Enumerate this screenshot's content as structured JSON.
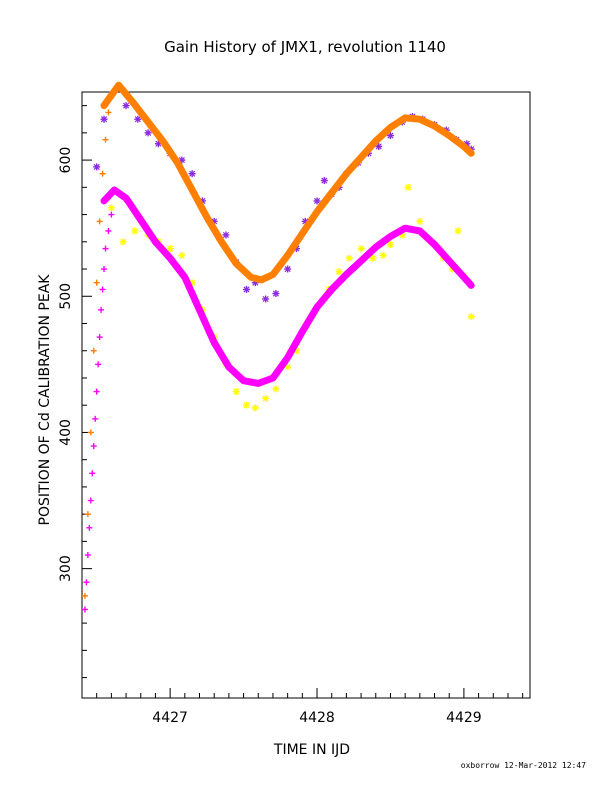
{
  "chart_data": {
    "type": "scatter",
    "title": "Gain History of JMX1, revolution 1140",
    "xlabel": "TIME IN IJD",
    "ylabel": "POSITION OF Cd CALIBRATION PEAK",
    "xlim": [
      4426.4,
      4429.45
    ],
    "ylim": [
      205,
      650
    ],
    "x_ticks": [
      4427,
      4428,
      4429
    ],
    "y_ticks": [
      300,
      400,
      500,
      600
    ],
    "grid": false,
    "footer": "oxborrow 12-Mar-2012 12:47",
    "colors": {
      "raw_high": "#8a2be2",
      "fit_high": "#ff7f00",
      "raw_low": "#ffff00",
      "fit_low": "#ff00ff"
    },
    "series": [
      {
        "role": "rise_low",
        "color": "#ff00ff",
        "marker": "plus",
        "points": [
          [
            4426.42,
            270
          ],
          [
            4426.43,
            290
          ],
          [
            4426.44,
            310
          ],
          [
            4426.45,
            330
          ],
          [
            4426.46,
            350
          ],
          [
            4426.47,
            370
          ],
          [
            4426.48,
            390
          ],
          [
            4426.49,
            410
          ],
          [
            4426.5,
            430
          ],
          [
            4426.51,
            450
          ],
          [
            4426.52,
            470
          ],
          [
            4426.53,
            490
          ],
          [
            4426.54,
            505
          ],
          [
            4426.55,
            520
          ],
          [
            4426.56,
            535
          ],
          [
            4426.58,
            548
          ],
          [
            4426.6,
            560
          ]
        ]
      },
      {
        "role": "rise_high",
        "color": "#ff7f00",
        "marker": "plus",
        "points": [
          [
            4426.42,
            280
          ],
          [
            4426.44,
            340
          ],
          [
            4426.46,
            400
          ],
          [
            4426.48,
            460
          ],
          [
            4426.5,
            510
          ],
          [
            4426.52,
            555
          ],
          [
            4426.54,
            590
          ],
          [
            4426.56,
            615
          ],
          [
            4426.58,
            635
          ],
          [
            4426.6,
            648
          ]
        ]
      },
      {
        "role": "raw_high",
        "color": "#8a2be2",
        "marker": "star",
        "points": [
          [
            4426.5,
            595
          ],
          [
            4426.55,
            630
          ],
          [
            4426.6,
            648
          ],
          [
            4426.7,
            640
          ],
          [
            4426.78,
            630
          ],
          [
            4426.85,
            620
          ],
          [
            4426.92,
            612
          ],
          [
            4427.0,
            605
          ],
          [
            4427.08,
            600
          ],
          [
            4427.15,
            590
          ],
          [
            4427.22,
            570
          ],
          [
            4427.3,
            555
          ],
          [
            4427.38,
            545
          ],
          [
            4427.45,
            525
          ],
          [
            4427.52,
            505
          ],
          [
            4427.58,
            510
          ],
          [
            4427.65,
            498
          ],
          [
            4427.72,
            502
          ],
          [
            4427.8,
            520
          ],
          [
            4427.86,
            535
          ],
          [
            4427.92,
            555
          ],
          [
            4428.0,
            570
          ],
          [
            4428.05,
            585
          ],
          [
            4428.1,
            575
          ],
          [
            4428.15,
            580
          ],
          [
            4428.2,
            590
          ],
          [
            4428.28,
            598
          ],
          [
            4428.35,
            605
          ],
          [
            4428.42,
            610
          ],
          [
            4428.5,
            618
          ],
          [
            4428.58,
            628
          ],
          [
            4428.65,
            632
          ],
          [
            4428.72,
            630
          ],
          [
            4428.8,
            626
          ],
          [
            4428.88,
            622
          ],
          [
            4428.95,
            615
          ],
          [
            4429.02,
            612
          ],
          [
            4429.05,
            608
          ]
        ]
      },
      {
        "role": "fit_high",
        "color": "#ff7f00",
        "marker": "line",
        "points": [
          [
            4426.55,
            640
          ],
          [
            4426.65,
            655
          ],
          [
            4426.75,
            642
          ],
          [
            4426.85,
            628
          ],
          [
            4426.95,
            614
          ],
          [
            4427.05,
            598
          ],
          [
            4427.15,
            578
          ],
          [
            4427.25,
            558
          ],
          [
            4427.35,
            540
          ],
          [
            4427.45,
            524
          ],
          [
            4427.55,
            514
          ],
          [
            4427.62,
            512
          ],
          [
            4427.7,
            516
          ],
          [
            4427.8,
            530
          ],
          [
            4427.9,
            546
          ],
          [
            4428.0,
            562
          ],
          [
            4428.1,
            576
          ],
          [
            4428.2,
            590
          ],
          [
            4428.3,
            602
          ],
          [
            4428.4,
            614
          ],
          [
            4428.5,
            624
          ],
          [
            4428.6,
            631
          ],
          [
            4428.7,
            630
          ],
          [
            4428.8,
            625
          ],
          [
            4428.9,
            618
          ],
          [
            4429.0,
            610
          ],
          [
            4429.05,
            605
          ]
        ]
      },
      {
        "role": "raw_low",
        "color": "#ffff00",
        "marker": "star",
        "points": [
          [
            4426.6,
            565
          ],
          [
            4426.68,
            540
          ],
          [
            4426.76,
            548
          ],
          [
            4426.85,
            545
          ],
          [
            4426.92,
            540
          ],
          [
            4427.0,
            535
          ],
          [
            4427.08,
            530
          ],
          [
            4427.15,
            510
          ],
          [
            4427.22,
            490
          ],
          [
            4427.3,
            470
          ],
          [
            4427.38,
            450
          ],
          [
            4427.45,
            430
          ],
          [
            4427.52,
            420
          ],
          [
            4427.58,
            418
          ],
          [
            4427.65,
            425
          ],
          [
            4427.72,
            432
          ],
          [
            4427.8,
            448
          ],
          [
            4427.86,
            460
          ],
          [
            4427.92,
            478
          ],
          [
            4428.0,
            492
          ],
          [
            4428.08,
            505
          ],
          [
            4428.15,
            518
          ],
          [
            4428.22,
            528
          ],
          [
            4428.3,
            535
          ],
          [
            4428.38,
            528
          ],
          [
            4428.45,
            530
          ],
          [
            4428.5,
            538
          ],
          [
            4428.58,
            545
          ],
          [
            4428.62,
            580
          ],
          [
            4428.7,
            555
          ],
          [
            4428.78,
            540
          ],
          [
            4428.86,
            528
          ],
          [
            4428.92,
            520
          ],
          [
            4428.96,
            548
          ],
          [
            4429.0,
            515
          ],
          [
            4429.05,
            485
          ]
        ]
      },
      {
        "role": "fit_low",
        "color": "#ff00ff",
        "marker": "line",
        "points": [
          [
            4426.55,
            570
          ],
          [
            4426.62,
            578
          ],
          [
            4426.7,
            572
          ],
          [
            4426.8,
            556
          ],
          [
            4426.9,
            540
          ],
          [
            4427.0,
            528
          ],
          [
            4427.1,
            514
          ],
          [
            4427.2,
            490
          ],
          [
            4427.3,
            466
          ],
          [
            4427.4,
            448
          ],
          [
            4427.5,
            438
          ],
          [
            4427.6,
            436
          ],
          [
            4427.7,
            440
          ],
          [
            4427.8,
            455
          ],
          [
            4427.9,
            474
          ],
          [
            4428.0,
            492
          ],
          [
            4428.1,
            505
          ],
          [
            4428.2,
            516
          ],
          [
            4428.3,
            526
          ],
          [
            4428.4,
            536
          ],
          [
            4428.5,
            544
          ],
          [
            4428.6,
            550
          ],
          [
            4428.7,
            548
          ],
          [
            4428.8,
            538
          ],
          [
            4428.9,
            526
          ],
          [
            4429.0,
            514
          ],
          [
            4429.05,
            508
          ]
        ]
      }
    ]
  }
}
